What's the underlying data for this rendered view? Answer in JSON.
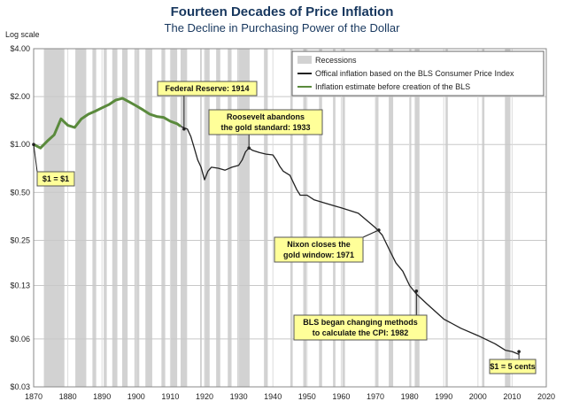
{
  "chart_data": {
    "type": "line",
    "title": "Fourteen Decades of Price Inflation",
    "subtitle": "The Decline in Purchasing Power of the Dollar",
    "ylabel": "Log scale",
    "xlim": [
      1870,
      2020
    ],
    "ylim": [
      0.03,
      4.0
    ],
    "yscale": "log",
    "grid": true,
    "legend_position": "top-right",
    "x_ticks": [
      1870,
      1880,
      1890,
      1900,
      1910,
      1920,
      1930,
      1940,
      1950,
      1960,
      1970,
      1980,
      1990,
      2000,
      2010,
      2020
    ],
    "y_ticks": [
      {
        "value": 4.0,
        "label": "$4.00"
      },
      {
        "value": 2.0,
        "label": "$2.00"
      },
      {
        "value": 1.0,
        "label": "$1.00"
      },
      {
        "value": 0.5,
        "label": "$0.50"
      },
      {
        "value": 0.25,
        "label": "$0.25"
      },
      {
        "value": 0.13,
        "label": "$0.13"
      },
      {
        "value": 0.06,
        "label": "$0.06"
      },
      {
        "value": 0.03,
        "label": "$0.03"
      }
    ],
    "recessions": [
      [
        1873.0,
        1879.0
      ],
      [
        1882.2,
        1885.4
      ],
      [
        1887.2,
        1888.3
      ],
      [
        1890.5,
        1891.4
      ],
      [
        1893.0,
        1894.5
      ],
      [
        1895.9,
        1897.5
      ],
      [
        1899.5,
        1900.9
      ],
      [
        1902.7,
        1904.7
      ],
      [
        1907.4,
        1908.5
      ],
      [
        1910.1,
        1912.0
      ],
      [
        1913.0,
        1914.9
      ],
      [
        1918.7,
        1919.2
      ],
      [
        1920.0,
        1921.5
      ],
      [
        1923.4,
        1924.6
      ],
      [
        1926.8,
        1927.9
      ],
      [
        1929.6,
        1933.2
      ],
      [
        1937.4,
        1938.5
      ],
      [
        1945.1,
        1945.8
      ],
      [
        1948.9,
        1949.8
      ],
      [
        1953.5,
        1954.4
      ],
      [
        1957.6,
        1958.3
      ],
      [
        1960.3,
        1961.1
      ],
      [
        1969.9,
        1970.9
      ],
      [
        1973.9,
        1975.2
      ],
      [
        1980.0,
        1980.5
      ],
      [
        1981.5,
        1982.9
      ],
      [
        1990.5,
        1991.2
      ],
      [
        2001.2,
        2001.9
      ],
      [
        2007.9,
        2009.5
      ]
    ],
    "series": [
      {
        "name": "Inflation estimate before creation of the BLS",
        "color": "#5a8a3c",
        "x": [
          1870,
          1872,
          1874,
          1876,
          1878,
          1880,
          1882,
          1884,
          1886,
          1888,
          1890,
          1892,
          1894,
          1896,
          1898,
          1900,
          1902,
          1904,
          1906,
          1908,
          1910,
          1912,
          1913
        ],
        "y": [
          1.0,
          0.95,
          1.05,
          1.15,
          1.45,
          1.32,
          1.28,
          1.45,
          1.55,
          1.62,
          1.7,
          1.78,
          1.9,
          1.95,
          1.85,
          1.75,
          1.65,
          1.55,
          1.5,
          1.48,
          1.4,
          1.35,
          1.3
        ]
      },
      {
        "name": "Offical inflation based on the BLS Consumer Price Index",
        "color": "#222222",
        "x": [
          1913,
          1915,
          1916,
          1917,
          1918,
          1919,
          1920,
          1921,
          1922,
          1924,
          1926,
          1928,
          1930,
          1931,
          1932,
          1933,
          1934,
          1936,
          1938,
          1940,
          1941,
          1942,
          1943,
          1945,
          1947,
          1948,
          1950,
          1952,
          1955,
          1960,
          1965,
          1970,
          1972,
          1974,
          1976,
          1978,
          1980,
          1982,
          1985,
          1990,
          1995,
          2000,
          2005,
          2008,
          2010,
          2012
        ],
        "y": [
          1.3,
          1.25,
          1.12,
          0.95,
          0.8,
          0.72,
          0.6,
          0.68,
          0.72,
          0.71,
          0.69,
          0.72,
          0.74,
          0.8,
          0.9,
          0.95,
          0.92,
          0.89,
          0.87,
          0.86,
          0.8,
          0.73,
          0.68,
          0.64,
          0.52,
          0.48,
          0.48,
          0.45,
          0.43,
          0.4,
          0.37,
          0.3,
          0.27,
          0.22,
          0.18,
          0.16,
          0.13,
          0.115,
          0.1,
          0.08,
          0.07,
          0.063,
          0.056,
          0.051,
          0.05,
          0.048
        ]
      }
    ],
    "legend": [
      {
        "label": "Recessions",
        "kind": "band"
      },
      {
        "label": "Offical inflation based on the BLS Consumer Price Index",
        "kind": "line",
        "color": "#222222"
      },
      {
        "label": "Inflation estimate before creation of the BLS",
        "kind": "line",
        "color": "#5a8a3c"
      }
    ],
    "annotations": [
      {
        "lines": [
          "$1 = $1"
        ],
        "target": [
          1870,
          1.0
        ]
      },
      {
        "lines": [
          "Federal Reserve: 1914"
        ],
        "target": [
          1914,
          1.25
        ]
      },
      {
        "lines": [
          "Roosevelt abandons",
          "the gold standard: 1933"
        ],
        "target": [
          1933,
          0.95
        ]
      },
      {
        "lines": [
          "Nixon closes the",
          "gold window: 1971"
        ],
        "target": [
          1971,
          0.29
        ]
      },
      {
        "lines": [
          "BLS began  changing methods",
          "to calculate the CPI: 1982"
        ],
        "target": [
          1982,
          0.12
        ]
      },
      {
        "lines": [
          "$1 = 5 cents"
        ],
        "target": [
          2012,
          0.05
        ]
      }
    ]
  }
}
